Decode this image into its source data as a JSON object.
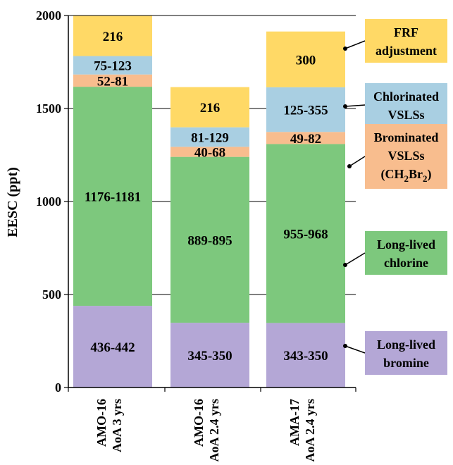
{
  "chart_data": {
    "type": "bar",
    "stacked": true,
    "ylabel": "EESC (ppt)",
    "ylim": [
      0,
      2000
    ],
    "yticks": [
      0,
      500,
      1000,
      1500,
      2000
    ],
    "grid": true,
    "categories": [
      [
        "AMO-16",
        "AoA 3 yrs"
      ],
      [
        "AMO-16",
        "AoA 2.4 yrs"
      ],
      [
        "AMA-17",
        "AoA 2.4 yrs"
      ]
    ],
    "series": [
      {
        "name": "Long-lived bromine",
        "color": "#b4a7d6",
        "values": [
          439,
          348,
          347
        ],
        "labels": [
          "436-442",
          "345-350",
          "343-350"
        ]
      },
      {
        "name": "Long-lived chlorine",
        "color": "#7dc87d",
        "values": [
          1178,
          892,
          962
        ],
        "labels": [
          "1176-1181",
          "889-895",
          "955-968"
        ]
      },
      {
        "name": "Brominated VSLSs (CH2Br2)",
        "color": "#f8bd8e",
        "values": [
          66,
          54,
          65
        ],
        "labels": [
          "52-81",
          "40-68",
          "49-82"
        ]
      },
      {
        "name": "Chlorinated VSLSs",
        "color": "#a9cfe2",
        "values": [
          99,
          105,
          240
        ],
        "labels": [
          "75-123",
          "81-129",
          "125-355"
        ]
      },
      {
        "name": "FRF adjustment",
        "color": "#ffd966",
        "values": [
          216,
          216,
          300
        ],
        "labels": [
          "216",
          "216",
          "300"
        ]
      }
    ],
    "legend": [
      {
        "lines": [
          "FRF",
          "adjustment"
        ],
        "color": "#ffd966",
        "series": 4
      },
      {
        "lines": [
          "Chlorinated",
          "VSLSs"
        ],
        "color": "#a9cfe2",
        "series": 3
      },
      {
        "lines": [
          "Brominated",
          "VSLSs"
        ],
        "formula": {
          "pre": "(CH",
          "s1": "2",
          "mid": "Br",
          "s2": "2",
          "post": ")"
        },
        "color": "#f8bd8e",
        "series": 2
      },
      {
        "lines": [
          "Long-lived",
          "chlorine"
        ],
        "color": "#7dc87d",
        "series": 1
      },
      {
        "lines": [
          "Long-lived",
          "bromine"
        ],
        "color": "#b4a7d6",
        "series": 0
      }
    ]
  }
}
